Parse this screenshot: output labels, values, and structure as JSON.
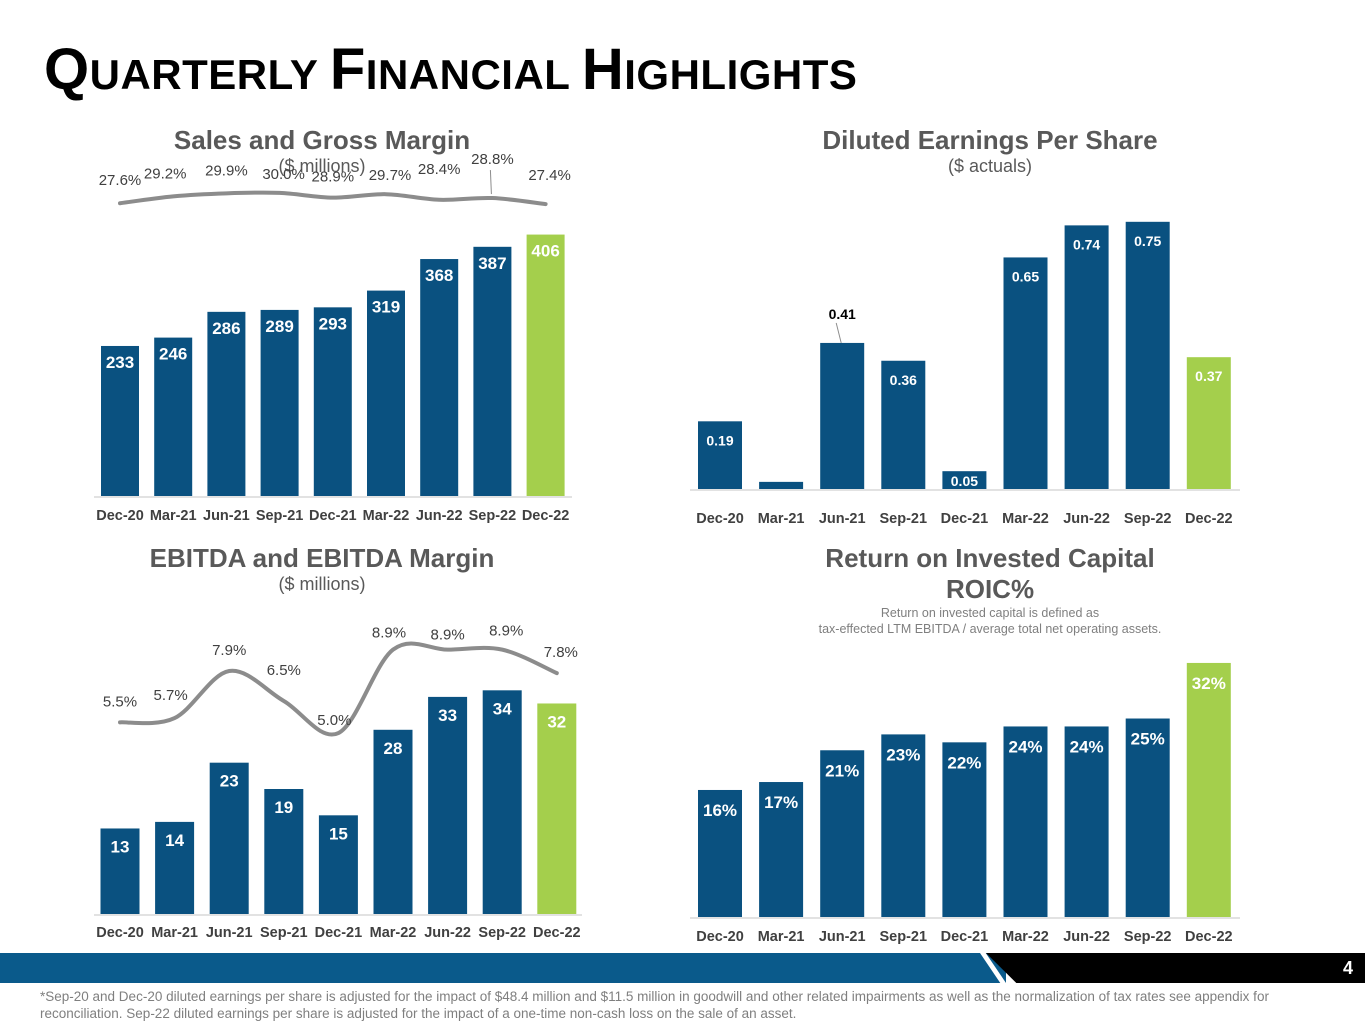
{
  "page": {
    "title_parts": [
      {
        "cap": "Q",
        "rest": "UARTERLY"
      },
      {
        "cap": "F",
        "rest": "INANCIAL"
      },
      {
        "cap": "H",
        "rest": "IGHLIGHTS"
      }
    ],
    "page_number": "4",
    "footnote": "*Sep-20 and Dec-20 diluted earnings per share is adjusted for the impact of $48.4 million and $11.5 million in goodwill and other related impairments as well as the normalization of tax rates see appendix for reconciliation. Sep-22 diluted earnings per share is adjusted for the impact of a one-time non-cash loss on the sale of an asset."
  },
  "colors": {
    "bar": "#0a5180",
    "highlight": "#a4cf4c",
    "line": "#8c8c8c",
    "axis": "#d9d9d9",
    "label_dark": "#404040",
    "band": "#0a5a8b"
  },
  "chart_data": [
    {
      "id": "sales",
      "type": "bar",
      "title": "Sales and Gross Margin",
      "subtitle": "($ millions)",
      "note": "",
      "categories": [
        "Dec-20",
        "Mar-21",
        "Jun-21",
        "Sep-21",
        "Dec-21",
        "Mar-22",
        "Jun-22",
        "Sep-22",
        "Dec-22"
      ],
      "series": [
        {
          "name": "Sales",
          "values": [
            233,
            246,
            286,
            289,
            293,
            319,
            368,
            387,
            406
          ],
          "labels": [
            "233",
            "246",
            "286",
            "289",
            "293",
            "319",
            "368",
            "387",
            "406"
          ]
        }
      ],
      "line": {
        "name": "Gross Margin",
        "values": [
          27.6,
          29.2,
          29.9,
          30.0,
          28.9,
          29.7,
          28.4,
          28.8,
          27.4
        ],
        "labels": [
          "27.6%",
          "29.2%",
          "29.9%",
          "30.0%",
          "28.9%",
          "29.7%",
          "28.4%",
          "28.8%",
          "27.4%"
        ],
        "ylim": [
          13.0,
          33.0
        ]
      },
      "ylim": [
        0,
        410
      ],
      "highlight_last": true
    },
    {
      "id": "eps",
      "type": "bar",
      "title": "Diluted Earnings Per Share",
      "subtitle": "($ actuals)",
      "note": "",
      "categories": [
        "Dec-20",
        "Mar-21",
        "Jun-21",
        "Sep-21",
        "Dec-21",
        "Mar-22",
        "Jun-22",
        "Sep-22",
        "Dec-22"
      ],
      "series": [
        {
          "name": "Diluted EPS",
          "values": [
            0.19,
            0.02,
            0.41,
            0.36,
            0.05,
            0.65,
            0.74,
            0.75,
            0.37
          ],
          "labels": [
            "0.19",
            "",
            "0.41",
            "0.36",
            "0.05",
            "0.65",
            "0.74",
            "0.75",
            "0.37"
          ]
        }
      ],
      "ylim": [
        0,
        0.8
      ],
      "highlight_last": true
    },
    {
      "id": "ebitda",
      "type": "bar",
      "title": "EBITDA and EBITDA Margin",
      "subtitle": "($ millions)",
      "note": "",
      "categories": [
        "Dec-20",
        "Mar-21",
        "Jun-21",
        "Sep-21",
        "Dec-21",
        "Mar-22",
        "Jun-22",
        "Sep-22",
        "Dec-22"
      ],
      "series": [
        {
          "name": "EBITDA",
          "values": [
            13,
            14,
            23,
            19,
            15,
            28,
            33,
            34,
            32
          ],
          "labels": [
            "13",
            "14",
            "23",
            "19",
            "15",
            "28",
            "33",
            "34",
            "32"
          ]
        }
      ],
      "line": {
        "name": "EBITDA Margin",
        "values": [
          5.5,
          5.7,
          7.9,
          6.5,
          5.0,
          8.9,
          8.9,
          8.9,
          7.8
        ],
        "labels": [
          "5.5%",
          "5.7%",
          "7.9%",
          "6.5%",
          "5.0%",
          "8.9%",
          "8.9%",
          "8.9%",
          "7.8%"
        ],
        "ylim": [
          0,
          11.5
        ]
      },
      "ylim": [
        0,
        38
      ],
      "highlight_last": true
    },
    {
      "id": "roic",
      "type": "bar",
      "title": "Return on Invested Capital",
      "title_line2": "ROIC%",
      "subtitle": "",
      "note": "Return on invested capital is defined as",
      "note_line2": "tax-effected LTM EBITDA / average total net operating assets.",
      "categories": [
        "Dec-20",
        "Mar-21",
        "Jun-21",
        "Sep-21",
        "Dec-21",
        "Mar-22",
        "Jun-22",
        "Sep-22",
        "Dec-22"
      ],
      "series": [
        {
          "name": "ROIC",
          "values": [
            16,
            17,
            21,
            23,
            22,
            24,
            24,
            25,
            32
          ],
          "labels": [
            "16%",
            "17%",
            "21%",
            "23%",
            "22%",
            "24%",
            "24%",
            "25%",
            "32%"
          ]
        }
      ],
      "ylim": [
        0,
        33
      ],
      "highlight_last": true
    }
  ]
}
